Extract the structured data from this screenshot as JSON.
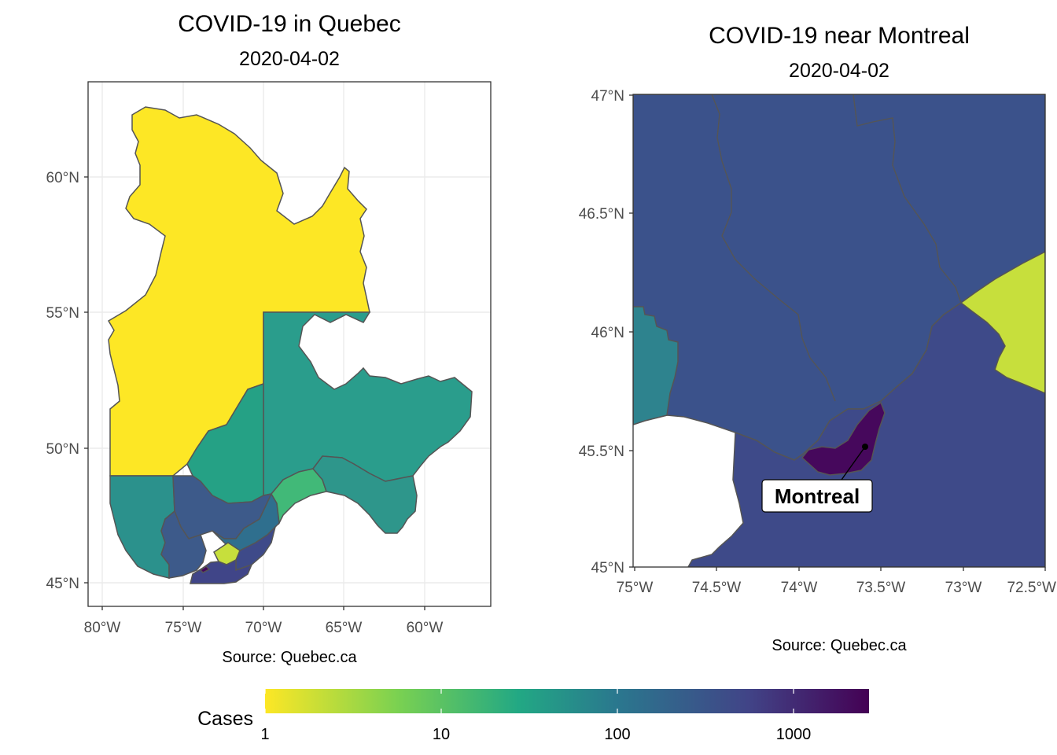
{
  "left_map": {
    "title": "COVID-19 in Quebec",
    "subtitle": "2020-04-02",
    "caption": "Source: Quebec.ca",
    "lat_ticks": [
      "60°N",
      "55°N",
      "50°N",
      "45°N"
    ],
    "lon_ticks": [
      "80°W",
      "75°W",
      "70°W",
      "65°W",
      "60°W"
    ]
  },
  "right_map": {
    "title": "COVID-19 near Montreal",
    "subtitle": "2020-04-02",
    "caption": "Source: Quebec.ca",
    "lat_ticks": [
      "47°N",
      "46.5°N",
      "46°N",
      "45.5°N",
      "45°N"
    ],
    "lon_ticks": [
      "75°W",
      "74.5°W",
      "74°W",
      "73.5°W",
      "73°W",
      "72.5°W"
    ],
    "annotation": "Montreal"
  },
  "legend": {
    "title": "Cases",
    "scale": "log10",
    "ticks": [
      "1",
      "10",
      "100",
      "1000"
    ],
    "colors": [
      "#fde725",
      "#7ad151",
      "#22a884",
      "#2a788e",
      "#414487",
      "#440154"
    ]
  },
  "colors": {
    "nord": "#fde725",
    "cote_nord": "#2a9d8c",
    "saguenay": "#25a185",
    "nord_ouest": "#2b918c",
    "mauricie": "#3d5a8a",
    "laurentides": "#3b528b",
    "lanaudiere": "#3d5a8a",
    "outaouais": "#2e838e",
    "monteregie": "#404588",
    "montreal": "#46085c",
    "estrie": "#c7df3c",
    "quebec_city": "#2f6f8e",
    "chaudiere": "#3e4a89",
    "bas_st_laurent": "#41b978",
    "gaspesie": "#2e968b"
  }
}
